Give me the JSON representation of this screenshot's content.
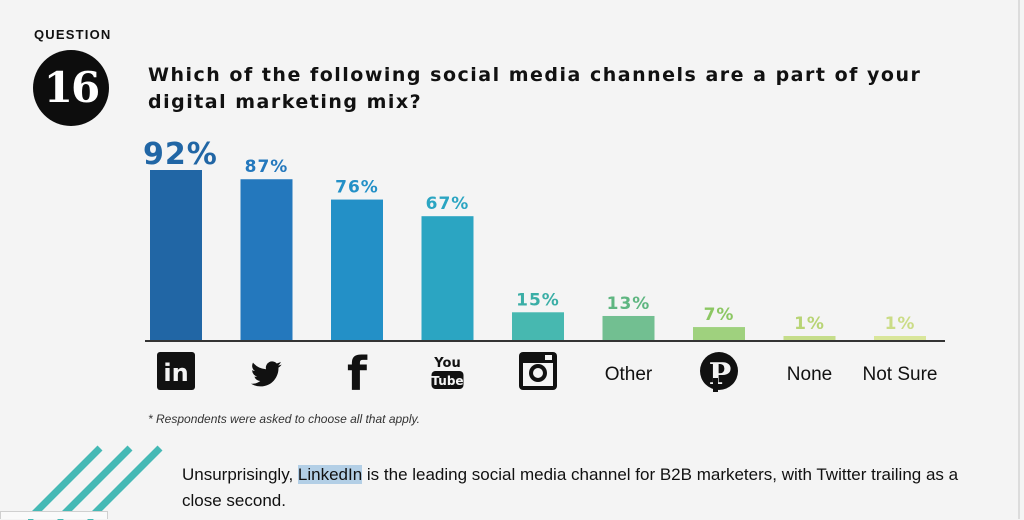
{
  "header": {
    "question_label": "QUESTION",
    "question_number": "16",
    "title": "Which of the following social media channels are a part of your digital marketing mix?"
  },
  "chart_data": {
    "type": "bar",
    "categories": [
      "LinkedIn",
      "Twitter",
      "Facebook",
      "YouTube",
      "Instagram",
      "Other",
      "Pinterest",
      "None",
      "Not Sure"
    ],
    "category_labels_shown": [
      "",
      "",
      "",
      "",
      "",
      "Other",
      "",
      "None",
      "Not Sure"
    ],
    "category_icons": [
      "linkedin-icon",
      "twitter-icon",
      "facebook-icon",
      "youtube-icon",
      "instagram-icon",
      "",
      "pinterest-icon",
      "",
      ""
    ],
    "values": [
      92,
      87,
      76,
      67,
      15,
      13,
      7,
      1,
      1
    ],
    "value_labels": [
      "92%",
      "87%",
      "76%",
      "67%",
      "15%",
      "13%",
      "7%",
      "1%",
      "1%"
    ],
    "colors": [
      "#2166a5",
      "#2478bd",
      "#2390c7",
      "#2ba5c2",
      "#47b8b0",
      "#72bf91",
      "#9fd17e",
      "#c5dd8a",
      "#d9e69a"
    ],
    "label_colors": [
      "#2166a5",
      "#2478bd",
      "#2390c7",
      "#2ba5c2",
      "#3aaea6",
      "#5fb681",
      "#8cc763",
      "#b8d475",
      "#cbdc86"
    ],
    "ylim": [
      0,
      100
    ],
    "grid": false,
    "xlabel": "",
    "ylabel": ""
  },
  "footnote": "* Respondents were asked to choose all that apply.",
  "caption": {
    "before": "Unsurprisingly, ",
    "highlight": "LinkedIn",
    "after": " is the leading social media channel for B2B marketers, with Twitter trailing as a close second."
  },
  "accent_color": "#45b9b5"
}
